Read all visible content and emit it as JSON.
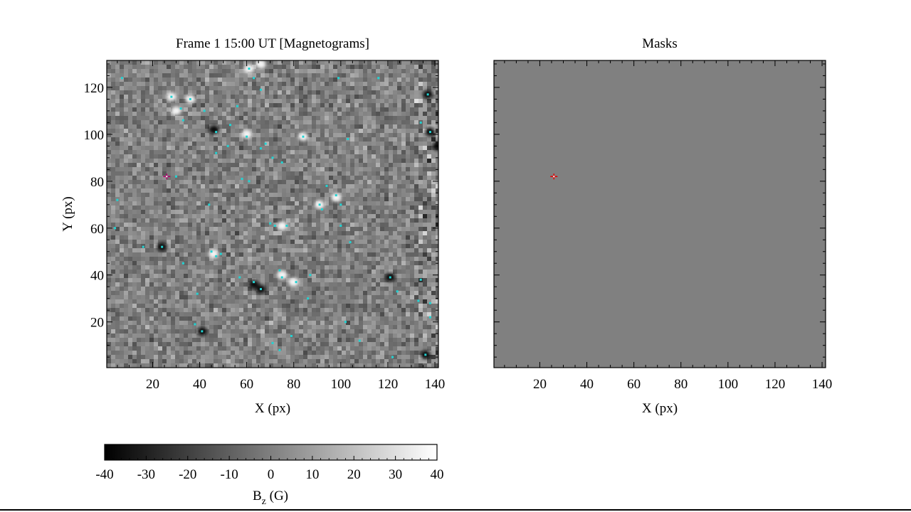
{
  "chart_data": [
    {
      "type": "heatmap",
      "title": "Frame 1  15:00 UT [Magnetograms]",
      "xlabel": "X (px)",
      "ylabel": "Y (px)",
      "xlim": [
        0.5,
        141.5
      ],
      "ylim": [
        0.5,
        131.5
      ],
      "xticks": [
        20,
        40,
        60,
        80,
        100,
        120,
        140
      ],
      "yticks": [
        20,
        40,
        60,
        80,
        100,
        120
      ],
      "colormap": "grayscale",
      "value_range": [
        -40,
        40
      ],
      "highlight_marker": {
        "x": 26,
        "y": 82,
        "color": "#b0006e"
      },
      "blobs": [
        {
          "x": 28,
          "y": 116,
          "sign": "positive"
        },
        {
          "x": 36,
          "y": 115,
          "sign": "positive"
        },
        {
          "x": 30,
          "y": 110,
          "sign": "positive"
        },
        {
          "x": 61,
          "y": 128,
          "sign": "positive"
        },
        {
          "x": 66,
          "y": 130,
          "sign": "positive"
        },
        {
          "x": 60,
          "y": 100,
          "sign": "positive"
        },
        {
          "x": 84,
          "y": 99,
          "sign": "positive"
        },
        {
          "x": 75,
          "y": 61,
          "sign": "positive"
        },
        {
          "x": 98,
          "y": 73,
          "sign": "positive"
        },
        {
          "x": 46,
          "y": 49,
          "sign": "positive"
        },
        {
          "x": 75,
          "y": 40,
          "sign": "positive"
        },
        {
          "x": 80,
          "y": 37,
          "sign": "positive"
        },
        {
          "x": 91,
          "y": 70,
          "sign": "positive"
        },
        {
          "x": 24,
          "y": 52,
          "sign": "negative"
        },
        {
          "x": 63,
          "y": 36,
          "sign": "negative"
        },
        {
          "x": 66,
          "y": 34,
          "sign": "negative"
        },
        {
          "x": 137,
          "y": 117,
          "sign": "negative"
        },
        {
          "x": 138,
          "y": 101,
          "sign": "negative"
        },
        {
          "x": 141,
          "y": 95,
          "sign": "negative"
        },
        {
          "x": 46,
          "y": 102,
          "sign": "negative"
        },
        {
          "x": 121,
          "y": 39,
          "sign": "negative"
        },
        {
          "x": 41,
          "y": 16,
          "sign": "negative"
        },
        {
          "x": 136,
          "y": 6,
          "sign": "negative"
        }
      ],
      "cyan_markers": [
        [
          7,
          124
        ],
        [
          28,
          116
        ],
        [
          32,
          111
        ],
        [
          36,
          115
        ],
        [
          33,
          106
        ],
        [
          42,
          110
        ],
        [
          47,
          101
        ],
        [
          53,
          104
        ],
        [
          56,
          112
        ],
        [
          61,
          128
        ],
        [
          63,
          124
        ],
        [
          66,
          119
        ],
        [
          60,
          99
        ],
        [
          66,
          94
        ],
        [
          68,
          96
        ],
        [
          71,
          90
        ],
        [
          75,
          88
        ],
        [
          84,
          99
        ],
        [
          99,
          124
        ],
        [
          103,
          98
        ],
        [
          116,
          124
        ],
        [
          134,
          105
        ],
        [
          137,
          117
        ],
        [
          138,
          101
        ],
        [
          30,
          82
        ],
        [
          47,
          92
        ],
        [
          58,
          81
        ],
        [
          61,
          80
        ],
        [
          52,
          95
        ],
        [
          94,
          78
        ],
        [
          98,
          74
        ],
        [
          100,
          70
        ],
        [
          91,
          70
        ],
        [
          92,
          68
        ],
        [
          100,
          61
        ],
        [
          104,
          54
        ],
        [
          70,
          62
        ],
        [
          72,
          61
        ],
        [
          77,
          61
        ],
        [
          45,
          50
        ],
        [
          47,
          48
        ],
        [
          49,
          49
        ],
        [
          24,
          52
        ],
        [
          16,
          52
        ],
        [
          33,
          45
        ],
        [
          44,
          70
        ],
        [
          5,
          72
        ],
        [
          4,
          60
        ],
        [
          57,
          39
        ],
        [
          63,
          37
        ],
        [
          66,
          34
        ],
        [
          74,
          42
        ],
        [
          75,
          39
        ],
        [
          81,
          37
        ],
        [
          87,
          40
        ],
        [
          86,
          30
        ],
        [
          121,
          39
        ],
        [
          124,
          33
        ],
        [
          134,
          38
        ],
        [
          138,
          28
        ],
        [
          138,
          22
        ],
        [
          133,
          29
        ],
        [
          38,
          19
        ],
        [
          41,
          16
        ],
        [
          71,
          11
        ],
        [
          74,
          8
        ],
        [
          79,
          14
        ],
        [
          102,
          20
        ],
        [
          108,
          12
        ],
        [
          122,
          5
        ],
        [
          136,
          6
        ],
        [
          39,
          32
        ]
      ]
    },
    {
      "type": "heatmap",
      "title": "Masks",
      "xlabel": "X (px)",
      "ylabel": "",
      "xlim": [
        0.5,
        141.5
      ],
      "ylim": [
        0.5,
        131.5
      ],
      "xticks": [
        20,
        40,
        60,
        80,
        100,
        120,
        140
      ],
      "yticks": [
        20,
        40,
        60,
        80,
        100,
        120
      ],
      "background": "#808080",
      "highlight_marker": {
        "x": 26,
        "y": 82,
        "color": "#e00000"
      }
    }
  ],
  "colorbar": {
    "label_main": "B",
    "label_sub": "z",
    "label_unit": " (G)",
    "range": [
      -40,
      40
    ],
    "ticks": [
      -40,
      -30,
      -20,
      -10,
      0,
      10,
      20,
      30,
      40
    ],
    "tick_labels": [
      "-40",
      "-30",
      "-20",
      "-10",
      "0",
      "10",
      "20",
      "30",
      "40"
    ]
  }
}
